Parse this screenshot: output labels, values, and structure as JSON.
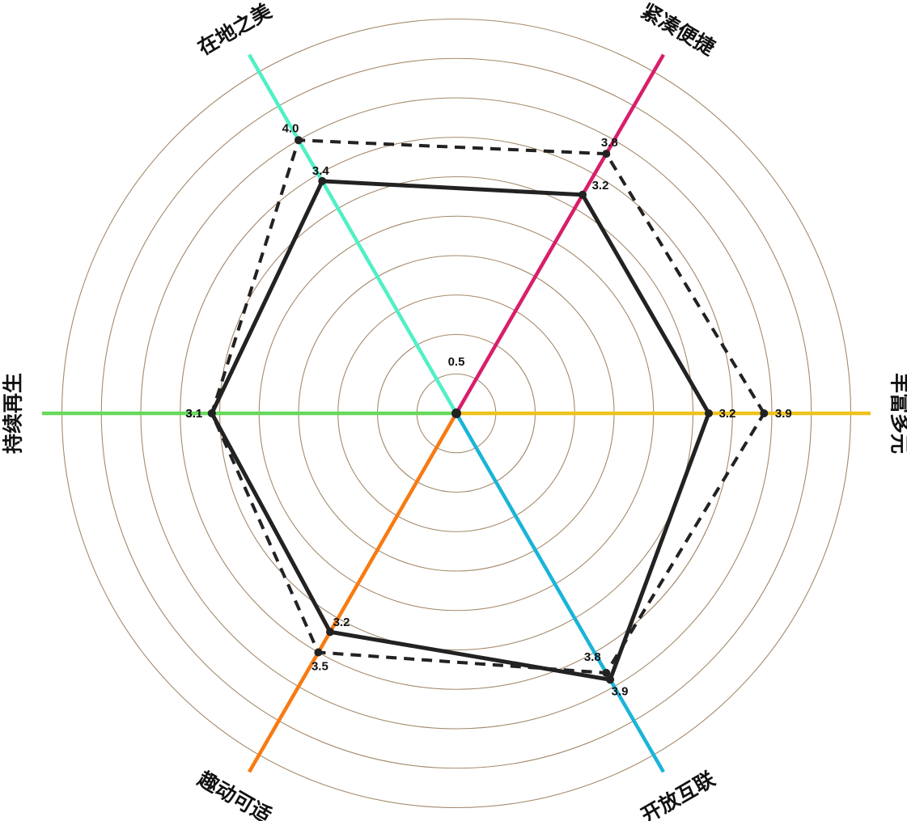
{
  "chart_data": {
    "type": "radar",
    "title": "",
    "axes": [
      "丰富多元",
      "紧凑便捷",
      "在地之美",
      "持续再生",
      "趣动可适",
      "开放互联"
    ],
    "axis_colors": [
      "#eec21a",
      "#d81e6b",
      "#4ff0c6",
      "#66d95a",
      "#f77a12",
      "#1ab4d8"
    ],
    "ring_color": "#a48a6c",
    "rlim": [
      0,
      5.0
    ],
    "ring_step": 0.5,
    "tick_labels": [
      "0.5"
    ],
    "series": [
      {
        "values": [
          3.2,
          3.2,
          3.4,
          3.1,
          3.2,
          3.9
        ],
        "labels": [
          "3.2",
          "3.2",
          "3.4",
          "3.1",
          "3.2",
          "3.9"
        ],
        "line_style": "solid",
        "color": "#222222"
      },
      {
        "values": [
          3.9,
          3.8,
          4.0,
          3.1,
          3.5,
          3.8
        ],
        "labels": [
          "3.9",
          "3.8",
          "4.0",
          "3.1",
          "3.5",
          "3.8"
        ],
        "line_style": "dashed",
        "color": "#222222"
      }
    ]
  }
}
